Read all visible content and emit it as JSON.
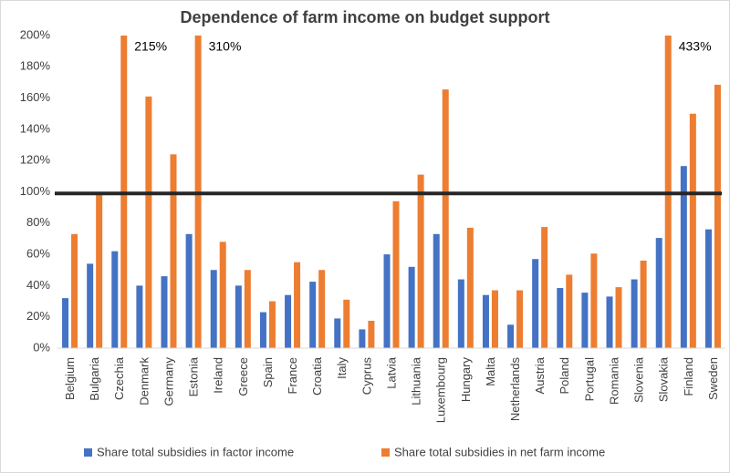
{
  "chart_data": {
    "type": "bar",
    "title": "Dependence of farm income on budget support",
    "categories": [
      "Belgium",
      "Bulgaria",
      "Czechia",
      "Denmark",
      "Germany",
      "Estonia",
      "Ireland",
      "Greece",
      "Spain",
      "France",
      "Croatia",
      "Italy",
      "Cyprus",
      "Latvia",
      "Lithuania",
      "Luxembourg",
      "Hungary",
      "Malta",
      "Netherlands",
      "Austria",
      "Poland",
      "Portugal",
      "Romania",
      "Slovenia",
      "Slovakia",
      "Finland",
      "Sweden"
    ],
    "series": [
      {
        "name": "Share total subsidies in factor income",
        "color": "#4472c4",
        "values": [
          32,
          54,
          62,
          40,
          46,
          73,
          50,
          40,
          23,
          34,
          42.5,
          19,
          12,
          60,
          52,
          73,
          44,
          34,
          15,
          57,
          38.5,
          35.5,
          33,
          44,
          70.5,
          116.5,
          76
        ]
      },
      {
        "name": "Share total subsidies in net farm income",
        "color": "#ed7d31",
        "values": [
          73,
          99,
          215,
          161,
          124,
          310,
          68,
          50,
          30,
          55,
          50,
          31,
          17.5,
          94,
          111,
          165.5,
          77,
          37,
          37,
          77.5,
          47,
          60.5,
          39,
          56,
          433,
          150,
          168.5
        ],
        "value_labels": [
          null,
          null,
          "215%",
          null,
          null,
          "310%",
          null,
          null,
          null,
          null,
          null,
          null,
          null,
          null,
          null,
          null,
          null,
          null,
          null,
          null,
          null,
          null,
          null,
          null,
          "433%",
          null,
          null
        ]
      }
    ],
    "ylim": [
      0,
      200
    ],
    "yticks": [
      {
        "value": 0,
        "label": "0%"
      },
      {
        "value": 20,
        "label": "20%"
      },
      {
        "value": 40,
        "label": "40%"
      },
      {
        "value": 60,
        "label": "60%"
      },
      {
        "value": 80,
        "label": "80%"
      },
      {
        "value": 100,
        "label": "100%"
      },
      {
        "value": 120,
        "label": "120%"
      },
      {
        "value": 140,
        "label": "140%"
      },
      {
        "value": 160,
        "label": "160%"
      },
      {
        "value": 180,
        "label": "180%"
      },
      {
        "value": 200,
        "label": "200%"
      }
    ],
    "reference_line": 99,
    "grid": false,
    "legend": "bottom"
  }
}
